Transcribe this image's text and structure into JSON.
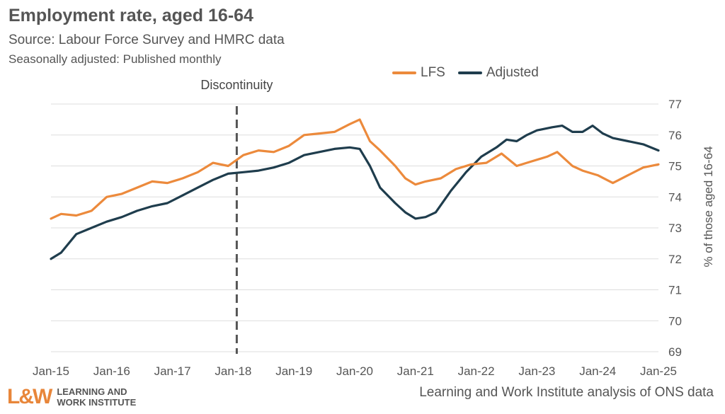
{
  "header": {
    "title": "Employment rate, aged 16-64",
    "subtitle": "Source: Labour Force Survey and HMRC data",
    "note": "Seasonally adjusted: Published monthly"
  },
  "footer": {
    "logo_mark": "L&W",
    "logo_line1": "LEARNING AND",
    "logo_line2": "WORK INSTITUTE",
    "credit": "Learning and Work Institute analysis of ONS data"
  },
  "colors": {
    "lfs": "#ec8a3c",
    "adjusted": "#1f3d4d",
    "grid": "#dddddd",
    "text": "#555555",
    "marker": "#555555"
  },
  "chart_data": {
    "type": "line",
    "title": "Employment rate, aged 16-64",
    "ylabel": "% of those aged 16-64",
    "y_axis_side": "right",
    "ylim": [
      69,
      77
    ],
    "yticks": [
      69,
      70,
      71,
      72,
      73,
      74,
      75,
      76,
      77
    ],
    "xticks": [
      "Jan-15",
      "Jan-16",
      "Jan-17",
      "Jan-18",
      "Jan-19",
      "Jan-20",
      "Jan-21",
      "Jan-22",
      "Jan-23",
      "Jan-24",
      "Jan-25"
    ],
    "legend_position": "top-right",
    "grid": true,
    "annotation": {
      "label": "Discontinuity",
      "x": "Jan-18",
      "style": "dashed vertical line"
    },
    "series": [
      {
        "name": "LFS",
        "color": "#ec8a3c",
        "points": [
          [
            "Jan-15",
            73.3
          ],
          [
            "Mar-15",
            73.45
          ],
          [
            "Jun-15",
            73.4
          ],
          [
            "Sep-15",
            73.55
          ],
          [
            "Dec-15",
            74.0
          ],
          [
            "Mar-16",
            74.1
          ],
          [
            "Jun-16",
            74.3
          ],
          [
            "Sep-16",
            74.5
          ],
          [
            "Dec-16",
            74.45
          ],
          [
            "Mar-17",
            74.6
          ],
          [
            "Jun-17",
            74.8
          ],
          [
            "Sep-17",
            75.1
          ],
          [
            "Dec-17",
            75.0
          ],
          [
            "Mar-18",
            75.35
          ],
          [
            "Jun-18",
            75.5
          ],
          [
            "Sep-18",
            75.45
          ],
          [
            "Dec-18",
            75.65
          ],
          [
            "Mar-19",
            76.0
          ],
          [
            "Jun-19",
            76.05
          ],
          [
            "Sep-19",
            76.1
          ],
          [
            "Dec-19",
            76.35
          ],
          [
            "Feb-20",
            76.5
          ],
          [
            "Apr-20",
            75.8
          ],
          [
            "Jun-20",
            75.5
          ],
          [
            "Sep-20",
            75.0
          ],
          [
            "Nov-20",
            74.6
          ],
          [
            "Jan-21",
            74.4
          ],
          [
            "Mar-21",
            74.5
          ],
          [
            "Jun-21",
            74.6
          ],
          [
            "Sep-21",
            74.9
          ],
          [
            "Dec-21",
            75.05
          ],
          [
            "Mar-22",
            75.1
          ],
          [
            "Jun-22",
            75.4
          ],
          [
            "Sep-22",
            75.0
          ],
          [
            "Dec-22",
            75.15
          ],
          [
            "Mar-23",
            75.3
          ],
          [
            "May-23",
            75.45
          ],
          [
            "Aug-23",
            75.0
          ],
          [
            "Oct-23",
            74.85
          ],
          [
            "Jan-24",
            74.7
          ],
          [
            "Apr-24",
            74.45
          ],
          [
            "Jul-24",
            74.7
          ],
          [
            "Oct-24",
            74.95
          ],
          [
            "Jan-25",
            75.05
          ]
        ]
      },
      {
        "name": "Adjusted",
        "color": "#1f3d4d",
        "points": [
          [
            "Jan-15",
            72.0
          ],
          [
            "Mar-15",
            72.2
          ],
          [
            "Jun-15",
            72.8
          ],
          [
            "Sep-15",
            73.0
          ],
          [
            "Dec-15",
            73.2
          ],
          [
            "Mar-16",
            73.35
          ],
          [
            "Jun-16",
            73.55
          ],
          [
            "Sep-16",
            73.7
          ],
          [
            "Dec-16",
            73.8
          ],
          [
            "Mar-17",
            74.05
          ],
          [
            "Jun-17",
            74.3
          ],
          [
            "Sep-17",
            74.55
          ],
          [
            "Dec-17",
            74.75
          ],
          [
            "Mar-18",
            74.8
          ],
          [
            "Jun-18",
            74.85
          ],
          [
            "Sep-18",
            74.95
          ],
          [
            "Dec-18",
            75.1
          ],
          [
            "Mar-19",
            75.35
          ],
          [
            "Jun-19",
            75.45
          ],
          [
            "Sep-19",
            75.55
          ],
          [
            "Dec-19",
            75.6
          ],
          [
            "Feb-20",
            75.55
          ],
          [
            "Apr-20",
            75.0
          ],
          [
            "Jun-20",
            74.3
          ],
          [
            "Sep-20",
            73.8
          ],
          [
            "Nov-20",
            73.5
          ],
          [
            "Jan-21",
            73.3
          ],
          [
            "Mar-21",
            73.35
          ],
          [
            "May-21",
            73.5
          ],
          [
            "Aug-21",
            74.2
          ],
          [
            "Nov-21",
            74.8
          ],
          [
            "Feb-22",
            75.3
          ],
          [
            "May-22",
            75.6
          ],
          [
            "Jul-22",
            75.85
          ],
          [
            "Sep-22",
            75.8
          ],
          [
            "Nov-22",
            76.0
          ],
          [
            "Jan-23",
            76.15
          ],
          [
            "Apr-23",
            76.25
          ],
          [
            "Jun-23",
            76.3
          ],
          [
            "Aug-23",
            76.1
          ],
          [
            "Oct-23",
            76.1
          ],
          [
            "Dec-23",
            76.3
          ],
          [
            "Feb-24",
            76.05
          ],
          [
            "Apr-24",
            75.9
          ],
          [
            "Jul-24",
            75.8
          ],
          [
            "Oct-24",
            75.7
          ],
          [
            "Jan-25",
            75.5
          ]
        ]
      }
    ]
  }
}
